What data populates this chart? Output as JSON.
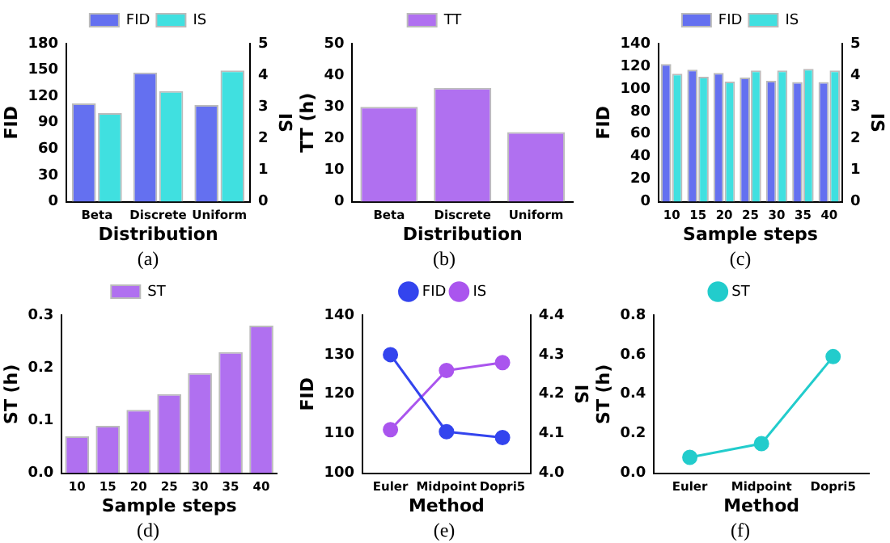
{
  "chart_data": [
    {
      "type": "bar",
      "xlabel": "Distribution",
      "ylabel": "FID",
      "y2label": "IS",
      "categories": [
        "Beta",
        "Discrete",
        "Uniform"
      ],
      "series": [
        {
          "name": "FID",
          "color": "#6470f0",
          "values": [
            112,
            147,
            110
          ]
        },
        {
          "name": "IS",
          "color": "#40e0e0",
          "axis": "y2",
          "values": [
            2.8,
            3.5,
            4.15
          ]
        }
      ],
      "ylim": [
        0,
        180
      ],
      "yticks": [
        0,
        30,
        60,
        90,
        120,
        150,
        180
      ],
      "y2lim": [
        0,
        5
      ],
      "y2ticks": [
        0,
        1,
        2,
        3,
        4,
        5
      ],
      "legend": "top",
      "grid": false,
      "annotations": [
        "(a)"
      ]
    },
    {
      "type": "bar",
      "xlabel": "Distribution",
      "ylabel": "TT (h)",
      "categories": [
        "Beta",
        "Discrete",
        "Uniform"
      ],
      "series": [
        {
          "name": "TT",
          "color": "#b070f0",
          "values": [
            30,
            36,
            22
          ]
        }
      ],
      "ylim": [
        0,
        50
      ],
      "yticks": [
        0,
        10,
        20,
        30,
        40,
        50
      ],
      "legend": "top",
      "grid": false,
      "annotations": [
        "(b)"
      ]
    },
    {
      "type": "bar",
      "xlabel": "Sample steps",
      "ylabel": "FID",
      "y2label": "IS",
      "categories": [
        "10",
        "15",
        "20",
        "25",
        "30",
        "35",
        "40"
      ],
      "series": [
        {
          "name": "FID",
          "color": "#6470f0",
          "values": [
            122,
            117,
            114,
            110,
            107,
            106,
            106
          ]
        },
        {
          "name": "IS",
          "color": "#40e0e0",
          "axis": "y2",
          "values": [
            4.05,
            3.95,
            3.8,
            4.15,
            4.15,
            4.2,
            4.15
          ]
        }
      ],
      "ylim": [
        0,
        140
      ],
      "yticks": [
        0,
        20,
        40,
        60,
        80,
        100,
        120,
        140
      ],
      "y2lim": [
        0,
        5
      ],
      "y2ticks": [
        0,
        1,
        2,
        3,
        4,
        5
      ],
      "legend": "top",
      "grid": false,
      "annotations": [
        "(c)"
      ]
    },
    {
      "type": "bar",
      "xlabel": "Sample steps",
      "ylabel": "ST (h)",
      "categories": [
        "10",
        "15",
        "20",
        "25",
        "30",
        "35",
        "40"
      ],
      "series": [
        {
          "name": "ST",
          "color": "#b070f0",
          "values": [
            0.07,
            0.09,
            0.12,
            0.15,
            0.19,
            0.23,
            0.28
          ]
        }
      ],
      "ylim": [
        0,
        0.3
      ],
      "yticks": [
        {
          "value": 0,
          "label": "0.0"
        },
        0.1,
        0.2,
        0.3
      ],
      "legend": "top",
      "grid": false,
      "annotations": [
        "(d)"
      ]
    },
    {
      "type": "line",
      "xlabel": "Method",
      "ylabel": "FID",
      "y2label": "IS",
      "categories": [
        "Euler",
        "Midpoint",
        "Dopri5"
      ],
      "series": [
        {
          "name": "FID",
          "color": "#3344ee",
          "values": [
            130,
            110.5,
            109
          ]
        },
        {
          "name": "IS",
          "color": "#aa55ee",
          "axis": "y2",
          "values": [
            4.11,
            4.26,
            4.28
          ]
        }
      ],
      "ylim": [
        100,
        140
      ],
      "yticks": [
        100,
        110,
        120,
        130,
        140
      ],
      "y2lim": [
        4.0,
        4.4
      ],
      "y2ticks": [
        {
          "value": 4.0,
          "label": "4.0"
        },
        4.1,
        4.2,
        4.3,
        4.4
      ],
      "legend": "top",
      "grid": false,
      "marker": "circle",
      "annotations": [
        "(e)"
      ]
    },
    {
      "type": "line",
      "xlabel": "Method",
      "ylabel": "ST (h)",
      "categories": [
        "Euler",
        "Midpoint",
        "Dopri5"
      ],
      "series": [
        {
          "name": "ST",
          "color": "#22cccc",
          "values": [
            0.08,
            0.15,
            0.59
          ]
        }
      ],
      "ylim": [
        0,
        0.8
      ],
      "yticks": [
        {
          "value": 0,
          "label": "0.0"
        },
        0.2,
        0.4,
        0.6,
        0.8
      ],
      "legend": "top",
      "grid": false,
      "marker": "circle",
      "annotations": [
        "(f)"
      ]
    }
  ]
}
